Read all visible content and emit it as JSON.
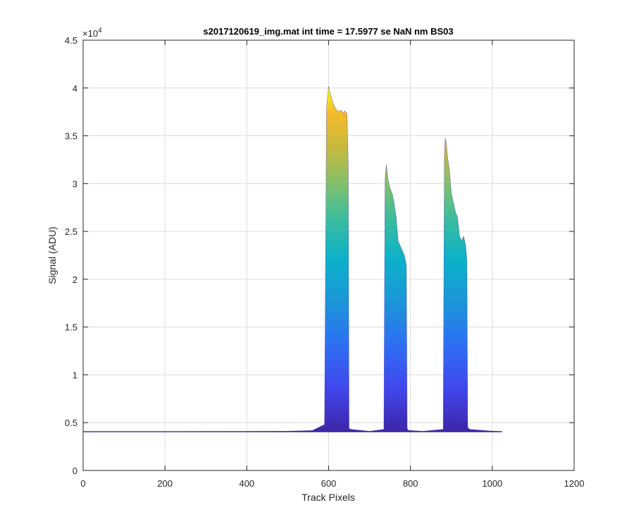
{
  "chart_data": {
    "type": "area",
    "title": "s2017120619_img.mat int time = 17.5977 se  NaN nm BS03",
    "xlabel": "Track Pixels",
    "ylabel": "Signal (ADU)",
    "xlim": [
      0,
      1200
    ],
    "ylim": [
      0,
      45000
    ],
    "x_ticks": [
      "0",
      "200",
      "400",
      "600",
      "800",
      "1000",
      "1200"
    ],
    "y_ticks": [
      "0",
      "0.5",
      "1",
      "1.5",
      "2",
      "2.5",
      "3",
      "3.5",
      "4",
      "4.5"
    ],
    "y_exponent": "×10",
    "y_exponent_power": "4",
    "grid": true,
    "colormap": "parula",
    "baseline": 4050,
    "series": [
      {
        "x": [
          0,
          100,
          200,
          300,
          400,
          500,
          560,
          590,
          595,
          600,
          602,
          605,
          610,
          615,
          620,
          625,
          630,
          635,
          640,
          645,
          648,
          650,
          655,
          700,
          735,
          738,
          741,
          745,
          750,
          755,
          760,
          765,
          770,
          775,
          780,
          785,
          790,
          792,
          795,
          830,
          880,
          883,
          885,
          888,
          890,
          895,
          900,
          905,
          910,
          915,
          920,
          925,
          930,
          935,
          938,
          940,
          945,
          990,
          1024
        ],
        "y": [
          4050,
          4060,
          4070,
          4080,
          4090,
          4110,
          4180,
          4800,
          38000,
          40200,
          39800,
          39300,
          38500,
          38000,
          37700,
          37500,
          37700,
          37400,
          37600,
          37300,
          32000,
          4400,
          4300,
          4100,
          4300,
          30500,
          32000,
          30500,
          29500,
          29000,
          28000,
          26500,
          24000,
          23500,
          23000,
          22500,
          21500,
          4400,
          4200,
          4100,
          4300,
          33000,
          34800,
          34200,
          33000,
          31500,
          29000,
          28000,
          27000,
          26500,
          24500,
          24000,
          24500,
          23500,
          22000,
          4500,
          4300,
          4150,
          4080
        ]
      }
    ]
  }
}
